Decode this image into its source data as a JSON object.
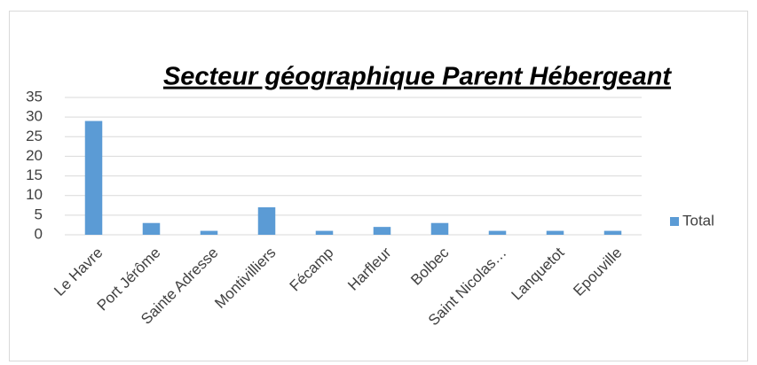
{
  "chart_data": {
    "type": "bar",
    "title": "Secteur géographique Parent Hébergeant",
    "categories": [
      "Le Havre",
      "Port Jérôme",
      "Sainte Adresse",
      "Montivilliers",
      "Fécamp",
      "Harfleur",
      "Bolbec",
      "Saint Nicolas…",
      "Lanquetot",
      "Epouville"
    ],
    "series": [
      {
        "name": "Total",
        "color": "#5b9bd5",
        "values": [
          29,
          3,
          1,
          7,
          1,
          2,
          3,
          1,
          1,
          1
        ]
      }
    ],
    "ylim": [
      0,
      35
    ],
    "yticks": [
      0,
      5,
      10,
      15,
      20,
      25,
      30,
      35
    ],
    "grid": true,
    "legend": "right"
  }
}
